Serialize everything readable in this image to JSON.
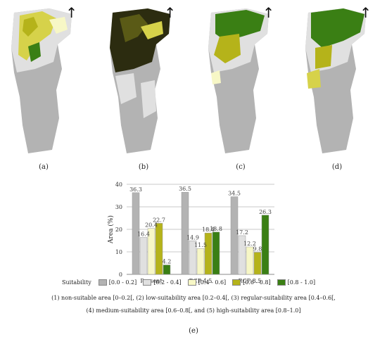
{
  "panels": {
    "a": "(a)",
    "b": "(b)",
    "c": "(c)",
    "d": "(d)",
    "e": "(e)"
  },
  "north_arrow": "↑",
  "legend": {
    "title": "Suitability",
    "items": [
      {
        "label": "[0.0 - 0.2]",
        "color": "#b3b3b3"
      },
      {
        "label": "[0.2 - 0.4]",
        "color": "#e0e0e0"
      },
      {
        "label": "[0.4 - 0.6]",
        "color": "#f7f7c6"
      },
      {
        "label": "[0.6 - 0.8]",
        "color": "#b5b31a"
      },
      {
        "label": "[0.8 - 1.0]",
        "color": "#3a7f14"
      }
    ]
  },
  "notes": {
    "line1": "(1) non-suitable area [0–0.2[, (2) low-suitability area [0.2–0.4[, (3) regular-suitability area [0.4–0.6[,",
    "line2": "(4) medium-suitability area [0.6–0.8[, and (5) high-suitability area [0.8–1.0]"
  },
  "chart_data": {
    "type": "bar",
    "categories": [
      "Present",
      "RCP 4.5",
      "RCP 8.5"
    ],
    "series": [
      {
        "name": "[0.0 - 0.2]",
        "values": [
          36.3,
          36.5,
          34.5
        ],
        "color": "#b3b3b3"
      },
      {
        "name": "[0.2 - 0.4]",
        "values": [
          16.4,
          14.9,
          17.2
        ],
        "color": "#e0e0e0"
      },
      {
        "name": "[0.4 - 0.6]",
        "values": [
          20.4,
          11.5,
          12.2
        ],
        "color": "#f7f7c6"
      },
      {
        "name": "[0.6 - 0.8]",
        "values": [
          22.7,
          18.4,
          9.8
        ],
        "color": "#b5b31a"
      },
      {
        "name": "[0.8 - 1.0]",
        "values": [
          4.2,
          18.8,
          26.3
        ],
        "color": "#3a7f14"
      }
    ],
    "ylabel": "Area (%)",
    "ylim": [
      0,
      40
    ],
    "yticks": [
      0,
      10,
      20,
      30,
      40
    ],
    "grid": true,
    "legend_position": "bottom"
  }
}
